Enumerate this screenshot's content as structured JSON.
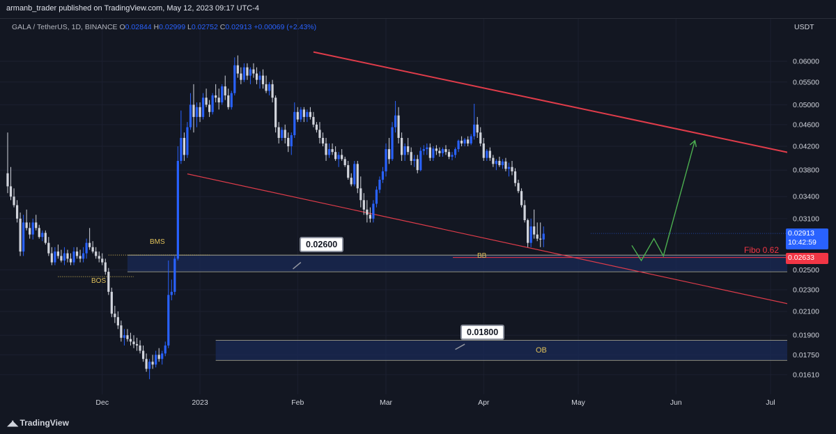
{
  "publisher_line": "armanb_trader published on TradingView.com, May 12, 2023 09:17 UTC-4",
  "symbol": {
    "name": "GALA / TetherUS, 1D, BINANCE",
    "o_label": "O",
    "o": "0.02844",
    "h_label": "H",
    "h": "0.02999",
    "l_label": "L",
    "l": "0.02752",
    "c_label": "C",
    "c": "0.02913",
    "change": "+0.00069 (+2.43%)"
  },
  "axis_currency": "USDT",
  "footer_brand": "TradingView",
  "price_tags": {
    "last_price": "0.02913",
    "countdown": "10:42:59",
    "fibo_price": "0.02633",
    "fibo_label": "Fibo 0.62"
  },
  "callouts": {
    "upper": "0.02600",
    "lower": "0.01800"
  },
  "zone_labels": {
    "bms": "BMS",
    "bos": "BOS",
    "bb": "BB",
    "ob": "OB"
  },
  "colors": {
    "background": "#131722",
    "bull_candle": "#2962ff",
    "bear_candle": "#d1d4dc",
    "trendline": "#e03c4a",
    "projection": "#4caf50",
    "zone_fill": "#1a2a55",
    "zone_text": "#e0c15a",
    "fibo": "#f23645"
  },
  "chart_data": {
    "type": "candlestick",
    "title": "GALA / TetherUS, 1D, BINANCE",
    "ylabel": "USDT",
    "y_ticks": [
      0.06,
      0.055,
      0.05,
      0.046,
      0.042,
      0.038,
      0.034,
      0.031,
      0.025,
      0.023,
      0.021,
      0.019,
      0.0175,
      0.0161
    ],
    "y_tick_labels": [
      "0.06000",
      "0.05500",
      "0.05000",
      "0.04600",
      "0.04200",
      "0.03800",
      "0.03400",
      "0.03100",
      "0.02500",
      "0.02300",
      "0.02100",
      "0.01900",
      "0.01750",
      "0.01610"
    ],
    "x_ticks": [
      "Dec",
      "2023",
      "Feb",
      "Mar",
      "Apr",
      "May",
      "Jun",
      "Jul"
    ],
    "x_tick_days": [
      30,
      61,
      92,
      120,
      151,
      181,
      212,
      242
    ],
    "candles": [
      [
        0.0375,
        0.0445,
        0.0345,
        0.0355
      ],
      [
        0.0355,
        0.0385,
        0.0335,
        0.034
      ],
      [
        0.034,
        0.0352,
        0.0325,
        0.0328
      ],
      [
        0.0328,
        0.0335,
        0.0305,
        0.031
      ],
      [
        0.031,
        0.0318,
        0.0265,
        0.027
      ],
      [
        0.027,
        0.0315,
        0.0265,
        0.0305
      ],
      [
        0.0305,
        0.0322,
        0.0295,
        0.0298
      ],
      [
        0.0298,
        0.0305,
        0.0285,
        0.029
      ],
      [
        0.029,
        0.031,
        0.0284,
        0.0305
      ],
      [
        0.0305,
        0.0315,
        0.0295,
        0.0298
      ],
      [
        0.0298,
        0.0302,
        0.0285,
        0.0287
      ],
      [
        0.0287,
        0.0295,
        0.0282,
        0.0292
      ],
      [
        0.0292,
        0.0295,
        0.0278,
        0.028
      ],
      [
        0.028,
        0.0287,
        0.0265,
        0.0268
      ],
      [
        0.0268,
        0.0275,
        0.0255,
        0.0258
      ],
      [
        0.0258,
        0.0275,
        0.0255,
        0.027
      ],
      [
        0.027,
        0.0278,
        0.0262,
        0.0265
      ],
      [
        0.0265,
        0.0272,
        0.0258,
        0.026
      ],
      [
        0.026,
        0.0275,
        0.0255,
        0.0268
      ],
      [
        0.0268,
        0.0272,
        0.0258,
        0.0262
      ],
      [
        0.0262,
        0.0268,
        0.0255,
        0.0258
      ],
      [
        0.0258,
        0.0275,
        0.0255,
        0.027
      ],
      [
        0.027,
        0.0275,
        0.0262,
        0.0265
      ],
      [
        0.0265,
        0.0272,
        0.0258,
        0.0262
      ],
      [
        0.0262,
        0.0275,
        0.0258,
        0.0268
      ],
      [
        0.0268,
        0.0285,
        0.0262,
        0.028
      ],
      [
        0.028,
        0.0298,
        0.0272,
        0.0275
      ],
      [
        0.0275,
        0.0282,
        0.0268,
        0.027
      ],
      [
        0.027,
        0.0275,
        0.0262,
        0.0265
      ],
      [
        0.0265,
        0.027,
        0.0258,
        0.0262
      ],
      [
        0.0262,
        0.0268,
        0.0255,
        0.0258
      ],
      [
        0.0258,
        0.0262,
        0.0245,
        0.0248
      ],
      [
        0.0248,
        0.0252,
        0.0225,
        0.0228
      ],
      [
        0.0228,
        0.0232,
        0.0205,
        0.0208
      ],
      [
        0.0208,
        0.0215,
        0.02,
        0.0205
      ],
      [
        0.0205,
        0.021,
        0.0195,
        0.0198
      ],
      [
        0.0198,
        0.0202,
        0.0185,
        0.0188
      ],
      [
        0.0188,
        0.0195,
        0.0182,
        0.019
      ],
      [
        0.019,
        0.0195,
        0.0185,
        0.0187
      ],
      [
        0.0187,
        0.0192,
        0.0182,
        0.0185
      ],
      [
        0.0185,
        0.019,
        0.018,
        0.0183
      ],
      [
        0.0183,
        0.0188,
        0.0178,
        0.0182
      ],
      [
        0.0182,
        0.0186,
        0.0176,
        0.0178
      ],
      [
        0.0178,
        0.0182,
        0.017,
        0.0172
      ],
      [
        0.0172,
        0.0176,
        0.0163,
        0.0165
      ],
      [
        0.0165,
        0.0172,
        0.0158,
        0.017
      ],
      [
        0.017,
        0.0175,
        0.0165,
        0.0168
      ],
      [
        0.0168,
        0.0178,
        0.0166,
        0.0175
      ],
      [
        0.0175,
        0.018,
        0.017,
        0.0172
      ],
      [
        0.0172,
        0.0178,
        0.0168,
        0.0176
      ],
      [
        0.0176,
        0.0185,
        0.0174,
        0.0182
      ],
      [
        0.0182,
        0.026,
        0.018,
        0.0225
      ],
      [
        0.0225,
        0.024,
        0.022,
        0.0228
      ],
      [
        0.0228,
        0.0265,
        0.0225,
        0.0262
      ],
      [
        0.0262,
        0.042,
        0.026,
        0.0395
      ],
      [
        0.0395,
        0.0488,
        0.039,
        0.0435
      ],
      [
        0.0435,
        0.0445,
        0.0395,
        0.0405
      ],
      [
        0.0405,
        0.0465,
        0.04,
        0.0455
      ],
      [
        0.0455,
        0.0525,
        0.045,
        0.05
      ],
      [
        0.05,
        0.0545,
        0.0445,
        0.0475
      ],
      [
        0.0475,
        0.0505,
        0.0455,
        0.0495
      ],
      [
        0.0495,
        0.0505,
        0.0465,
        0.0475
      ],
      [
        0.0475,
        0.0525,
        0.047,
        0.0515
      ],
      [
        0.0515,
        0.0535,
        0.0495,
        0.05
      ],
      [
        0.05,
        0.051,
        0.0475,
        0.0485
      ],
      [
        0.0485,
        0.0525,
        0.048,
        0.052
      ],
      [
        0.052,
        0.0545,
        0.0505,
        0.0515
      ],
      [
        0.0515,
        0.0535,
        0.049,
        0.0505
      ],
      [
        0.0505,
        0.0545,
        0.05,
        0.054
      ],
      [
        0.054,
        0.0565,
        0.051,
        0.052
      ],
      [
        0.052,
        0.0535,
        0.049,
        0.0495
      ],
      [
        0.0495,
        0.053,
        0.049,
        0.0525
      ],
      [
        0.0525,
        0.061,
        0.052,
        0.059
      ],
      [
        0.059,
        0.0615,
        0.056,
        0.057
      ],
      [
        0.057,
        0.0585,
        0.0545,
        0.0555
      ],
      [
        0.0555,
        0.0595,
        0.055,
        0.0585
      ],
      [
        0.0585,
        0.0595,
        0.0555,
        0.0565
      ],
      [
        0.0565,
        0.0585,
        0.0545,
        0.058
      ],
      [
        0.058,
        0.0595,
        0.056,
        0.057
      ],
      [
        0.057,
        0.0585,
        0.0545,
        0.0555
      ],
      [
        0.0555,
        0.0575,
        0.0535,
        0.0565
      ],
      [
        0.0565,
        0.058,
        0.0535,
        0.0545
      ],
      [
        0.0545,
        0.0565,
        0.0525,
        0.053
      ],
      [
        0.053,
        0.055,
        0.052,
        0.0545
      ],
      [
        0.0545,
        0.0555,
        0.0505,
        0.0515
      ],
      [
        0.0515,
        0.052,
        0.0445,
        0.0455
      ],
      [
        0.0455,
        0.0465,
        0.0425,
        0.0435
      ],
      [
        0.0435,
        0.0455,
        0.043,
        0.045
      ],
      [
        0.045,
        0.046,
        0.0425,
        0.0435
      ],
      [
        0.0435,
        0.0445,
        0.041,
        0.042
      ],
      [
        0.042,
        0.0445,
        0.0405,
        0.044
      ],
      [
        0.044,
        0.0505,
        0.0435,
        0.0485
      ],
      [
        0.0485,
        0.0495,
        0.0465,
        0.047
      ],
      [
        0.047,
        0.0495,
        0.0465,
        0.049
      ],
      [
        0.049,
        0.0495,
        0.0465,
        0.0475
      ],
      [
        0.0475,
        0.049,
        0.0465,
        0.0485
      ],
      [
        0.0485,
        0.0495,
        0.047,
        0.0475
      ],
      [
        0.0475,
        0.0485,
        0.0455,
        0.046
      ],
      [
        0.046,
        0.0465,
        0.0445,
        0.045
      ],
      [
        0.045,
        0.0465,
        0.0425,
        0.0435
      ],
      [
        0.0435,
        0.0445,
        0.042,
        0.0425
      ],
      [
        0.0425,
        0.0435,
        0.0395,
        0.0405
      ],
      [
        0.0405,
        0.0425,
        0.04,
        0.0415
      ],
      [
        0.0415,
        0.0425,
        0.0405,
        0.041
      ],
      [
        0.041,
        0.042,
        0.0395,
        0.0398
      ],
      [
        0.0398,
        0.041,
        0.0385,
        0.0405
      ],
      [
        0.0405,
        0.0415,
        0.0395,
        0.0398
      ],
      [
        0.0398,
        0.0402,
        0.0385,
        0.0388
      ],
      [
        0.0388,
        0.0395,
        0.0365,
        0.0368
      ],
      [
        0.0368,
        0.0375,
        0.0355,
        0.0358
      ],
      [
        0.0358,
        0.0395,
        0.0355,
        0.039
      ],
      [
        0.039,
        0.0395,
        0.0345,
        0.0352
      ],
      [
        0.0352,
        0.037,
        0.0325,
        0.0335
      ],
      [
        0.0335,
        0.0345,
        0.0315,
        0.0322
      ],
      [
        0.0322,
        0.0335,
        0.0305,
        0.0315
      ],
      [
        0.0315,
        0.0325,
        0.0305,
        0.031
      ],
      [
        0.031,
        0.0335,
        0.0305,
        0.033
      ],
      [
        0.033,
        0.0355,
        0.0325,
        0.035
      ],
      [
        0.035,
        0.037,
        0.0345,
        0.0365
      ],
      [
        0.0365,
        0.0385,
        0.036,
        0.0378
      ],
      [
        0.0378,
        0.0425,
        0.037,
        0.0415
      ],
      [
        0.0415,
        0.0435,
        0.039,
        0.0398
      ],
      [
        0.0398,
        0.0465,
        0.0395,
        0.0455
      ],
      [
        0.0455,
        0.0508,
        0.0445,
        0.0478
      ],
      [
        0.0478,
        0.0495,
        0.0425,
        0.0435
      ],
      [
        0.0435,
        0.0445,
        0.0395,
        0.0405
      ],
      [
        0.0405,
        0.0425,
        0.0395,
        0.042
      ],
      [
        0.042,
        0.0435,
        0.0405,
        0.041
      ],
      [
        0.041,
        0.0418,
        0.0388,
        0.0395
      ],
      [
        0.0395,
        0.0405,
        0.0385,
        0.0398
      ],
      [
        0.0398,
        0.0405,
        0.0375,
        0.038
      ],
      [
        0.038,
        0.0418,
        0.0378,
        0.0412
      ],
      [
        0.0412,
        0.0422,
        0.0405,
        0.0415
      ],
      [
        0.0415,
        0.0425,
        0.0405,
        0.0418
      ],
      [
        0.0418,
        0.0425,
        0.0395,
        0.04
      ],
      [
        0.04,
        0.042,
        0.0395,
        0.0416
      ],
      [
        0.0416,
        0.0422,
        0.0405,
        0.0412
      ],
      [
        0.0412,
        0.0418,
        0.0402,
        0.0408
      ],
      [
        0.0408,
        0.0418,
        0.0402,
        0.0415
      ],
      [
        0.0415,
        0.0422,
        0.0405,
        0.041
      ],
      [
        0.041,
        0.0415,
        0.0398,
        0.0402
      ],
      [
        0.0402,
        0.041,
        0.0396,
        0.0405
      ],
      [
        0.0405,
        0.0418,
        0.04,
        0.0415
      ],
      [
        0.0415,
        0.0432,
        0.041,
        0.043
      ],
      [
        0.043,
        0.0438,
        0.042,
        0.0425
      ],
      [
        0.0425,
        0.0435,
        0.042,
        0.0432
      ],
      [
        0.0432,
        0.0438,
        0.042,
        0.0425
      ],
      [
        0.0425,
        0.0442,
        0.0422,
        0.0438
      ],
      [
        0.0438,
        0.0502,
        0.0432,
        0.046
      ],
      [
        0.046,
        0.0475,
        0.0435,
        0.0445
      ],
      [
        0.0445,
        0.0455,
        0.042,
        0.0425
      ],
      [
        0.0425,
        0.0435,
        0.0395,
        0.04
      ],
      [
        0.04,
        0.0415,
        0.0395,
        0.0412
      ],
      [
        0.0412,
        0.0418,
        0.0395,
        0.04
      ],
      [
        0.04,
        0.0405,
        0.0385,
        0.039
      ],
      [
        0.039,
        0.0398,
        0.038,
        0.0395
      ],
      [
        0.0395,
        0.0402,
        0.0385,
        0.0388
      ],
      [
        0.0388,
        0.0398,
        0.0382,
        0.0394
      ],
      [
        0.0394,
        0.04,
        0.0378,
        0.0382
      ],
      [
        0.0382,
        0.0392,
        0.037,
        0.0385
      ],
      [
        0.0385,
        0.0395,
        0.0372,
        0.0378
      ],
      [
        0.0378,
        0.0383,
        0.0355,
        0.036
      ],
      [
        0.036,
        0.0365,
        0.0345,
        0.0348
      ],
      [
        0.0348,
        0.0352,
        0.0325,
        0.0328
      ],
      [
        0.0328,
        0.0335,
        0.0305,
        0.0308
      ],
      [
        0.0308,
        0.031,
        0.0275,
        0.028
      ],
      [
        0.028,
        0.031,
        0.0275,
        0.03
      ],
      [
        0.03,
        0.0322,
        0.0285,
        0.029
      ],
      [
        0.029,
        0.0305,
        0.0282,
        0.0285
      ],
      [
        0.0285,
        0.0305,
        0.0275,
        0.0284
      ],
      [
        0.0284,
        0.03,
        0.0275,
        0.0291
      ]
    ],
    "trendlines": [
      {
        "name": "upper-channel",
        "from": [
          97,
          0.0624
        ],
        "to": [
          262,
          0.0393
        ]
      },
      {
        "name": "lower-channel",
        "from": [
          57,
          0.0374
        ],
        "to": [
          262,
          0.0208
        ]
      }
    ],
    "zones": [
      {
        "label": "BMS",
        "from_day": 38,
        "to": 262,
        "top": 0.0266,
        "bottom": 0.0248
      },
      {
        "label": "OB",
        "from_day": 66,
        "to": 262,
        "top": 0.0186,
        "bottom": 0.0171
      }
    ],
    "fibo_level": 0.02633,
    "projection_path": [
      [
        198,
        0.0277
      ],
      [
        201,
        0.026
      ],
      [
        205,
        0.0285
      ],
      [
        208,
        0.0265
      ],
      [
        218,
        0.043
      ]
    ],
    "last_price": 0.02913,
    "grid": true
  }
}
